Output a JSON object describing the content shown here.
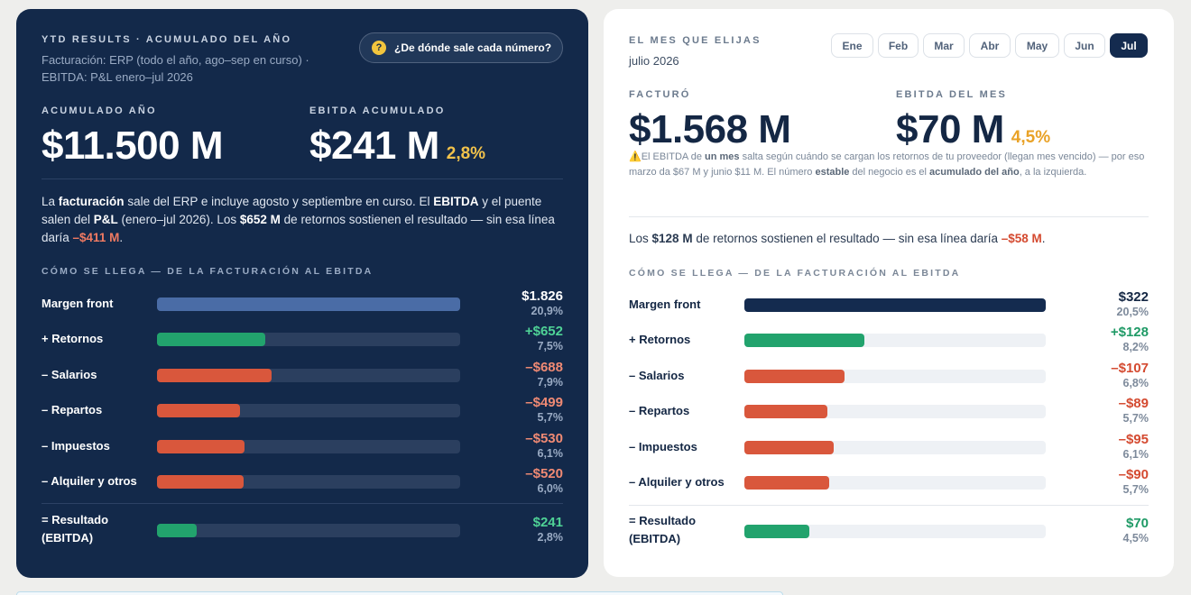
{
  "left": {
    "kicker": "YTD RESULTS · ACUMULADO DEL AÑO",
    "sub_line1": "Facturación: ERP (todo el año, ago–sep en curso) ·",
    "sub_line2": "EBITDA: P&L enero–jul 2026",
    "help_icon_glyph": "?",
    "help_label": "¿De dónde sale cada número?",
    "acum_label": "ACUMULADO AÑO",
    "acum_value": "$11.500 M",
    "ebitda_label": "EBITDA ACUMULADO",
    "ebitda_value": "$241 M",
    "ebitda_pct": "2,8%",
    "para": {
      "t1": "La ",
      "b1": "facturación",
      "t2": " sale del ERP e incluye agosto y septiembre en curso. El ",
      "b2": "EBITDA",
      "t3": " y el puente salen del ",
      "b3": "P&L",
      "t4": " (enero–jul 2026). Los ",
      "b4": "$652 M",
      "t5": " de retornos sostienen el resultado — sin esa línea daría ",
      "neg": "–$411 M",
      "t6": "."
    },
    "bridge_title": "CÓMO SE LLEGA — DE LA FACTURACIÓN AL EBITDA",
    "rows": [
      {
        "label": "Margen front",
        "value": "$1.826",
        "pct": "20,9%",
        "fill": 1.0,
        "kind": "base"
      },
      {
        "label": "+ Retornos",
        "value": "+$652",
        "pct": "7,5%",
        "fill": 0.357,
        "kind": "pos"
      },
      {
        "label": "– Salarios",
        "value": "–$688",
        "pct": "7,9%",
        "fill": 0.377,
        "kind": "neg"
      },
      {
        "label": "– Repartos",
        "value": "–$499",
        "pct": "5,7%",
        "fill": 0.273,
        "kind": "neg"
      },
      {
        "label": "– Impuestos",
        "value": "–$530",
        "pct": "6,1%",
        "fill": 0.29,
        "kind": "neg"
      },
      {
        "label": "– Alquiler y otros",
        "value": "–$520",
        "pct": "6,0%",
        "fill": 0.285,
        "kind": "neg"
      }
    ],
    "result": {
      "label_line1": "= Resultado",
      "label_line2": "(EBITDA)",
      "value": "$241",
      "pct": "2,8%",
      "fill": 0.132
    }
  },
  "right": {
    "kicker": "EL MES QUE ELIJAS",
    "month_label": "julio 2026",
    "months": [
      "Ene",
      "Feb",
      "Mar",
      "Abr",
      "May",
      "Jun",
      "Jul"
    ],
    "active_month": "Jul",
    "facturo_label": "FACTURÓ",
    "facturo_value": "$1.568 M",
    "ebitda_label": "EBITDA DEL MES",
    "ebitda_value": "$70 M",
    "ebitda_pct": "4,5%",
    "warning": {
      "icon": "⚠️",
      "t1": "El EBITDA de ",
      "b1": "un mes",
      "t2": " salta según cuándo se cargan los retornos de tu proveedor (llegan mes vencido) — por eso marzo da $67 M y junio $11 M. El número ",
      "b2": "estable",
      "t3": " del negocio es el ",
      "b3": "acumulado del año",
      "t4": ", a la izquierda."
    },
    "para": {
      "t1": "Los ",
      "b1": "$128 M",
      "t2": " de retornos sostienen el resultado — sin esa línea daría ",
      "neg": "–$58 M",
      "t3": "."
    },
    "bridge_title": "CÓMO SE LLEGA — DE LA FACTURACIÓN AL EBITDA",
    "rows": [
      {
        "label": "Margen front",
        "value": "$322",
        "pct": "20,5%",
        "fill": 1.0,
        "kind": "base"
      },
      {
        "label": "+ Retornos",
        "value": "+$128",
        "pct": "8,2%",
        "fill": 0.398,
        "kind": "pos"
      },
      {
        "label": "– Salarios",
        "value": "–$107",
        "pct": "6,8%",
        "fill": 0.332,
        "kind": "neg"
      },
      {
        "label": "– Repartos",
        "value": "–$89",
        "pct": "5,7%",
        "fill": 0.276,
        "kind": "neg"
      },
      {
        "label": "– Impuestos",
        "value": "–$95",
        "pct": "6,1%",
        "fill": 0.295,
        "kind": "neg"
      },
      {
        "label": "– Alquiler y otros",
        "value": "–$90",
        "pct": "5,7%",
        "fill": 0.28,
        "kind": "neg"
      }
    ],
    "result": {
      "label_line1": "= Resultado",
      "label_line2": "(EBITDA)",
      "value": "$70",
      "pct": "4,5%",
      "fill": 0.217
    }
  },
  "colors": {
    "navy": "#13294a",
    "left_base_bar": "#4a6ca6",
    "left_track": "#2b3f5f",
    "right_base_bar": "#142b4f",
    "right_track": "#eef1f5",
    "green": "#22a36d",
    "red": "#d9573c",
    "left_pos_text": "#4fd296",
    "left_neg_text": "#f08a74",
    "right_pos_text": "#1f9a66",
    "right_neg_text": "#d44a30",
    "yellow_pct": "#f2c24b",
    "orange_pct": "#e9a227"
  }
}
